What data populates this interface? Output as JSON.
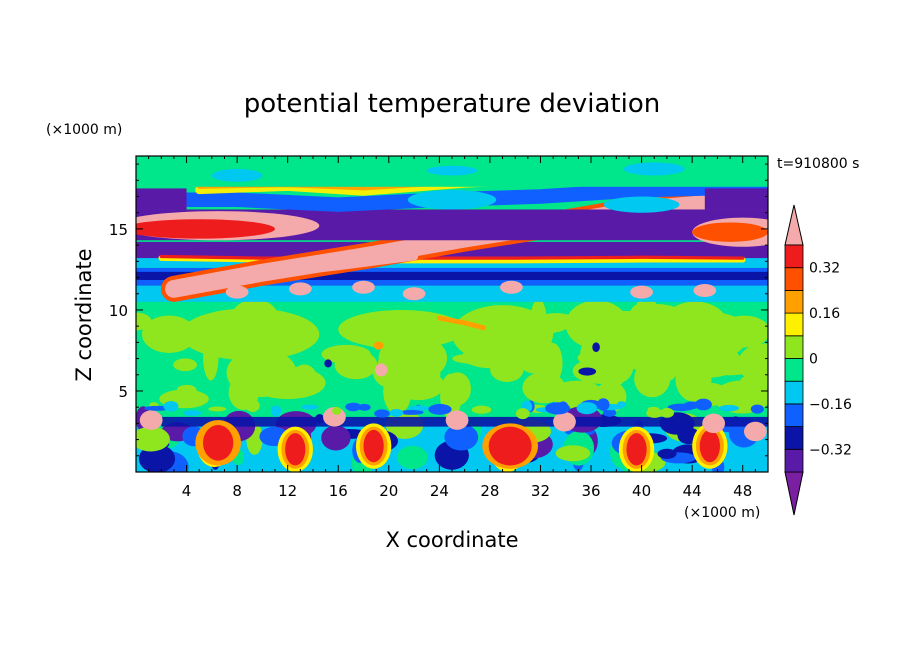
{
  "chart_data": {
    "type": "heatmap",
    "title": "potential temperature deviation",
    "xlabel": "X coordinate",
    "ylabel": "Z coordinate",
    "x_unit_label": "(×1000 m)",
    "y_unit_label": "(×1000 m)",
    "time_label": "t=910800 s",
    "xlim": [
      0,
      50
    ],
    "ylim": [
      0,
      19.5
    ],
    "x_ticks": [
      4,
      8,
      12,
      16,
      20,
      24,
      28,
      32,
      36,
      40,
      44,
      48
    ],
    "x_tick_labels": [
      "4",
      "8",
      "12",
      "16",
      "20",
      "24",
      "28",
      "32",
      "36",
      "40",
      "44",
      "48"
    ],
    "y_ticks": [
      5,
      10,
      15
    ],
    "y_tick_labels": [
      "5",
      "10",
      "15"
    ],
    "colorbar": {
      "levels": [
        -0.4,
        -0.32,
        -0.24,
        -0.16,
        -0.08,
        0,
        0.08,
        0.16,
        0.24,
        0.32,
        0.4
      ],
      "tick_values": [
        0.32,
        0.16,
        0,
        -0.16,
        -0.32
      ],
      "tick_labels": [
        "0.32",
        "0.16",
        "0",
        "−0.16",
        "−0.32"
      ],
      "colors_low_to_high": [
        "#7a1fa2",
        "#5a1aa8",
        "#0a14a6",
        "#1060ff",
        "#00c8f0",
        "#00e68a",
        "#90e61e",
        "#fff000",
        "#ffa000",
        "#ff5000",
        "#ee1c1c",
        "#f4aaaa"
      ],
      "extend": "both"
    }
  }
}
